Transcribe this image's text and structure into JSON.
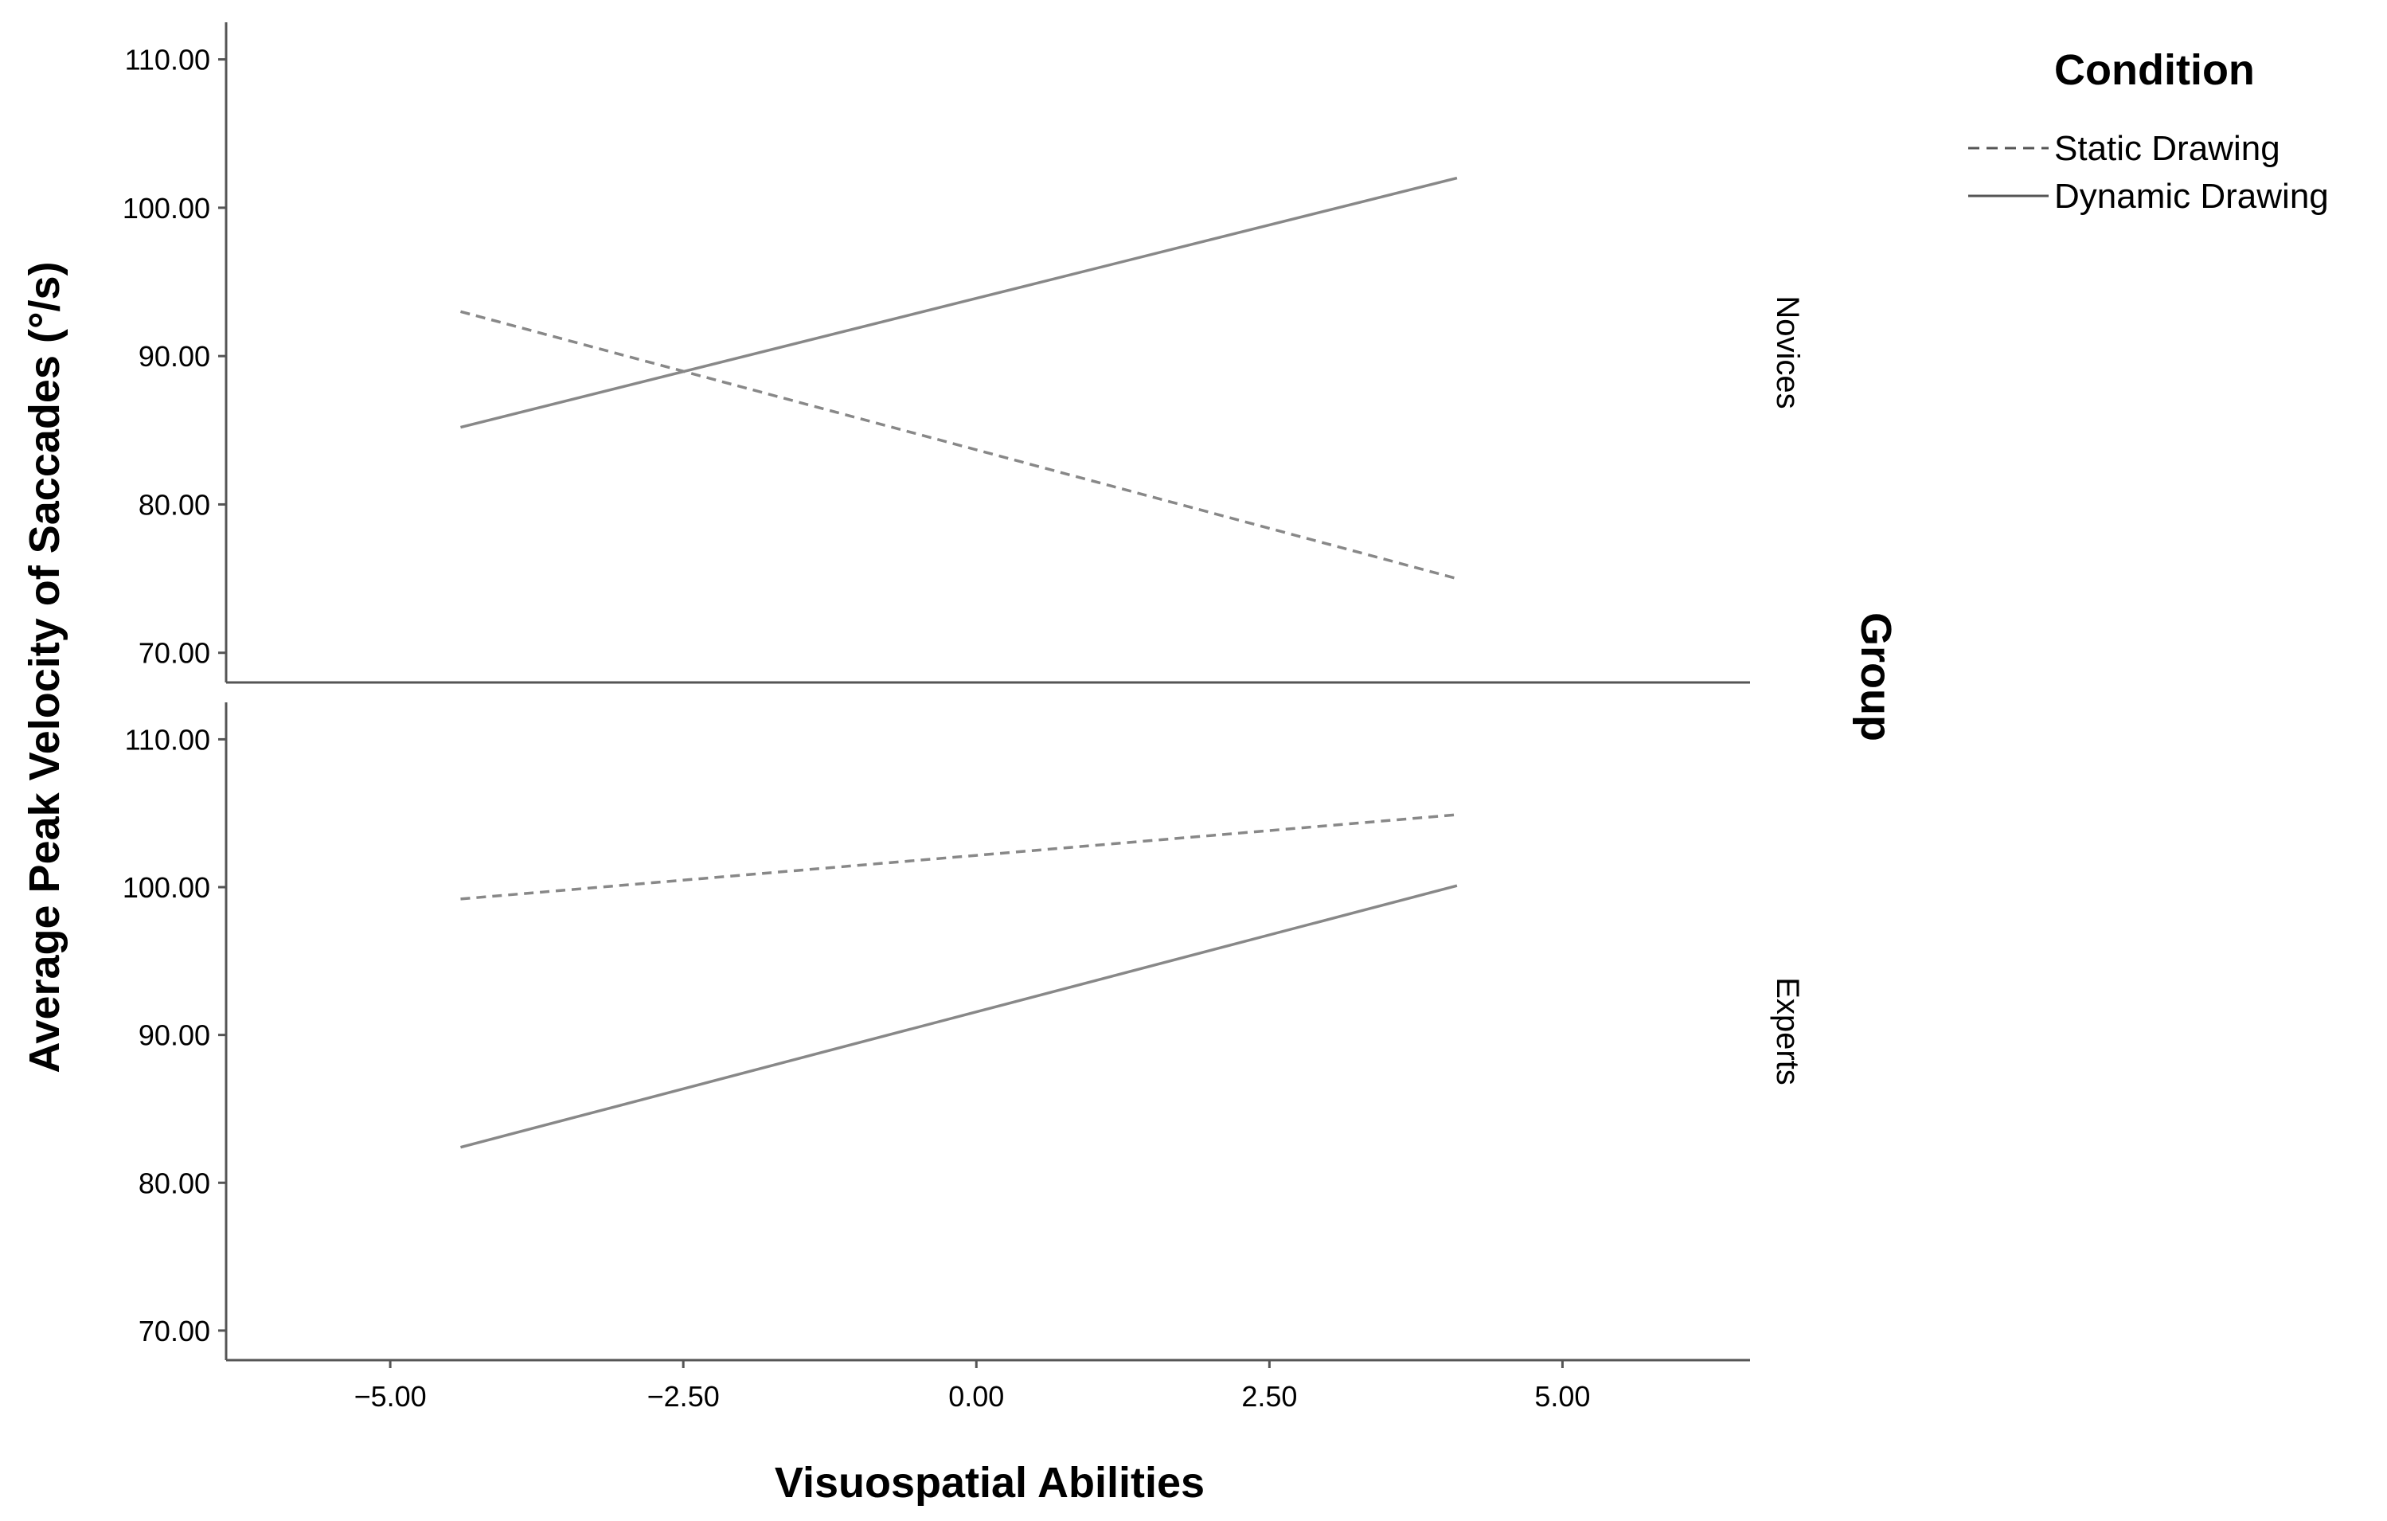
{
  "chart_data": {
    "type": "line",
    "xlabel": "Visuospatial Abilities",
    "ylabel": "Average Peak Velocity of Saccades (°/s)",
    "xlim": [
      -6.4,
      6.6
    ],
    "ylim": [
      68,
      112.5
    ],
    "x_ticks": [
      -5,
      -2.5,
      0,
      2.5,
      5
    ],
    "x_tick_labels": [
      "−5.00",
      "−2.50",
      "0.00",
      "2.50",
      "5.00"
    ],
    "y_ticks": [
      70,
      80,
      90,
      100,
      110
    ],
    "y_tick_labels": [
      "70.00",
      "80.00",
      "90.00",
      "100.00",
      "110.00"
    ],
    "facet_title": "Group",
    "facets": [
      {
        "label": "Novices",
        "series": [
          {
            "name": "Static Drawing",
            "style": "dashed",
            "x": [
              -4.4,
              4.1
            ],
            "y": [
              93.0,
              75.0
            ]
          },
          {
            "name": "Dynamic Drawing",
            "style": "solid",
            "x": [
              -4.4,
              4.1
            ],
            "y": [
              85.2,
              102.0
            ]
          }
        ]
      },
      {
        "label": "Experts",
        "series": [
          {
            "name": "Static Drawing",
            "style": "dashed",
            "x": [
              -4.4,
              4.1
            ],
            "y": [
              99.2,
              104.9
            ]
          },
          {
            "name": "Dynamic Drawing",
            "style": "solid",
            "x": [
              -4.4,
              4.1
            ],
            "y": [
              82.4,
              100.1
            ]
          }
        ]
      }
    ],
    "legend": {
      "title": "Condition",
      "position": "top-right",
      "entries": [
        {
          "name": "Static Drawing",
          "style": "dashed"
        },
        {
          "name": "Dynamic Drawing",
          "style": "solid"
        }
      ]
    },
    "line_color": "#888888",
    "axis_color": "#555555"
  }
}
